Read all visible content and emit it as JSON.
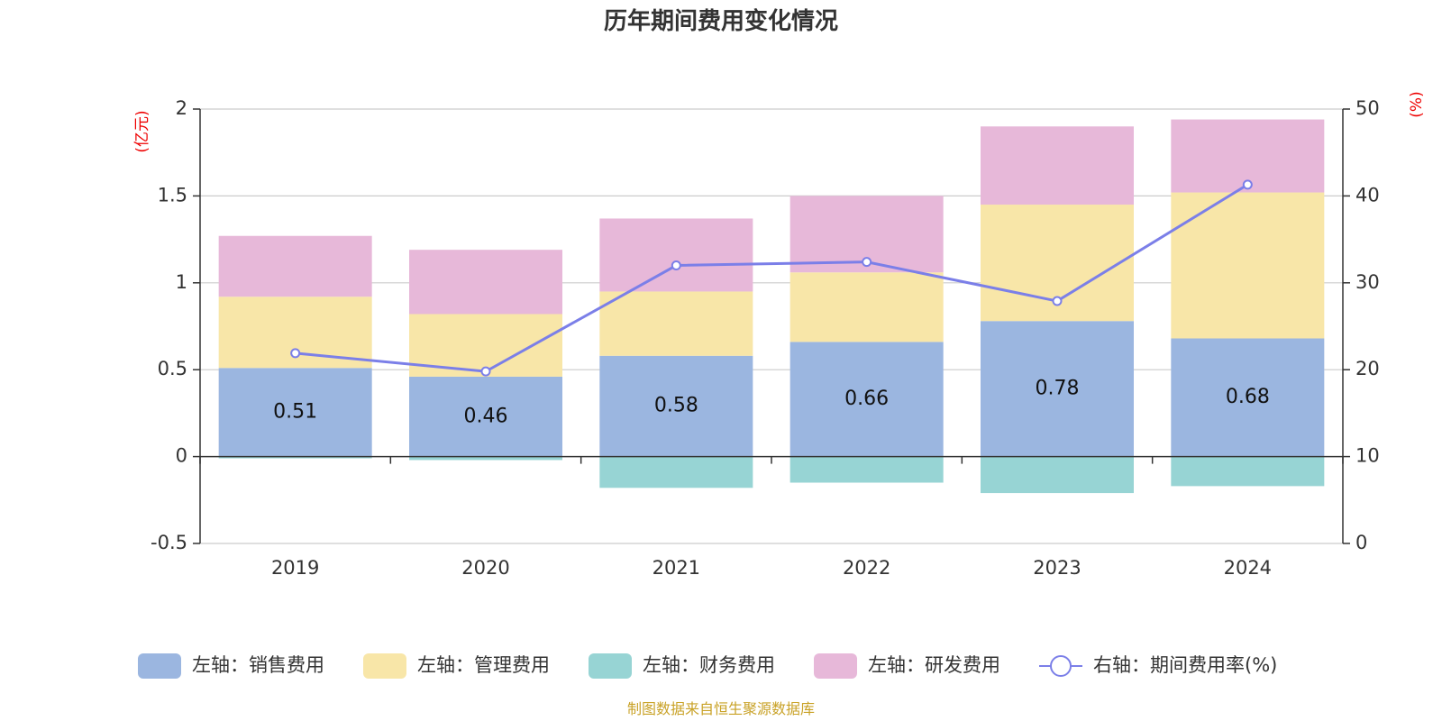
{
  "chart_data": {
    "type": "bar",
    "title": "历年期间费用变化情况",
    "left_axis_unit": "(亿元)",
    "right_axis_unit": "(%)",
    "categories": [
      "2019",
      "2020",
      "2021",
      "2022",
      "2023",
      "2024"
    ],
    "left_axis": {
      "ylim": [
        -0.5,
        2
      ],
      "ticks": [
        "-0.5",
        "0",
        "0.5",
        "1",
        "1.5",
        "2"
      ]
    },
    "right_axis": {
      "ylim": [
        0,
        50
      ],
      "ticks": [
        "0",
        "10",
        "20",
        "30",
        "40",
        "50"
      ]
    },
    "stacked": true,
    "grid": true,
    "legend_position": "bottom",
    "series": [
      {
        "name": "左轴：销售费用",
        "type": "bar",
        "axis": "left",
        "color": "#9bb6e0",
        "values": [
          0.51,
          0.46,
          0.58,
          0.66,
          0.78,
          0.68
        ],
        "labels": [
          "0.51",
          "0.46",
          "0.58",
          "0.66",
          "0.78",
          "0.68"
        ]
      },
      {
        "name": "左轴：管理费用",
        "type": "bar",
        "axis": "left",
        "color": "#f8e6a8",
        "values": [
          0.41,
          0.36,
          0.37,
          0.4,
          0.67,
          0.84
        ]
      },
      {
        "name": "左轴：财务费用",
        "type": "bar",
        "axis": "left",
        "color": "#97d4d4",
        "values": [
          -0.01,
          -0.02,
          -0.18,
          -0.15,
          -0.21,
          -0.17
        ]
      },
      {
        "name": "左轴：研发费用",
        "type": "bar",
        "axis": "left",
        "color": "#e7b8d9",
        "values": [
          0.35,
          0.37,
          0.42,
          0.44,
          0.45,
          0.42
        ]
      },
      {
        "name": "右轴：期间费用率(%)",
        "type": "line",
        "axis": "right",
        "color": "#7b7fe8",
        "values": [
          21.9,
          19.8,
          32.0,
          32.4,
          27.9,
          41.3
        ]
      }
    ],
    "source": "制图数据来自恒生聚源数据库"
  }
}
